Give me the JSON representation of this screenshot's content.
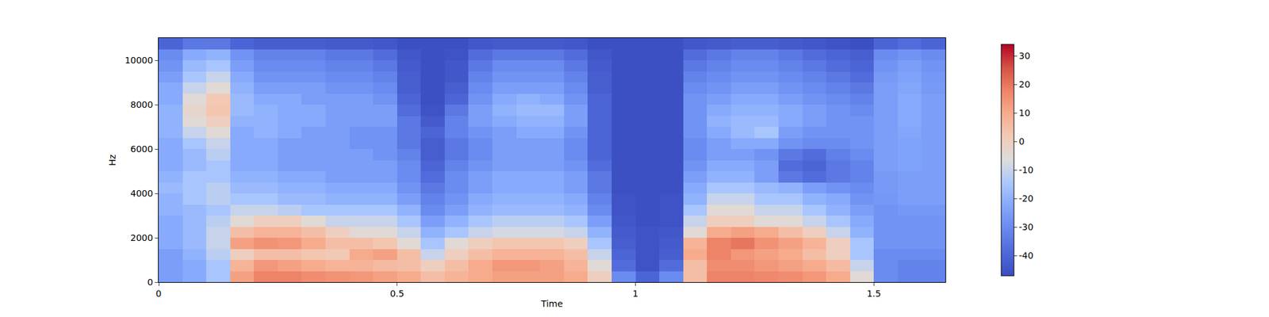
{
  "chart_data": {
    "type": "heatmap",
    "x_label": "Time",
    "y_label": "Hz",
    "xlim": [
      0,
      1.65
    ],
    "xticks": [
      0,
      0.5,
      1,
      1.5
    ],
    "ylim": [
      0,
      11000
    ],
    "yticks": [
      0,
      2000,
      4000,
      6000,
      8000,
      10000
    ],
    "colorbar_range": [
      -47,
      34
    ],
    "colorbar_ticks": [
      -40,
      -30,
      -20,
      -10,
      0,
      10,
      20,
      30
    ],
    "x": [
      0.025,
      0.075,
      0.125,
      0.175,
      0.225,
      0.275,
      0.325,
      0.375,
      0.425,
      0.475,
      0.525,
      0.575,
      0.625,
      0.675,
      0.725,
      0.775,
      0.825,
      0.875,
      0.925,
      0.975,
      1.025,
      1.075,
      1.125,
      1.175,
      1.225,
      1.275,
      1.325,
      1.375,
      1.425,
      1.475,
      1.525,
      1.575,
      1.625
    ],
    "y": [
      250,
      750,
      1250,
      1750,
      2250,
      2750,
      3250,
      3750,
      4250,
      4750,
      5250,
      5750,
      6250,
      6750,
      7250,
      7750,
      8250,
      8750,
      9250,
      9750,
      10250,
      10750
    ],
    "z": [
      [
        -25,
        -22,
        -15,
        12,
        18,
        18,
        16,
        15,
        14,
        12,
        10,
        5,
        8,
        10,
        12,
        12,
        12,
        10,
        0,
        -30,
        -40,
        -30,
        5,
        18,
        18,
        17,
        16,
        14,
        10,
        -5,
        -30,
        -32,
        -32
      ],
      [
        -25,
        -22,
        -15,
        8,
        14,
        12,
        10,
        8,
        8,
        6,
        5,
        0,
        5,
        10,
        14,
        14,
        12,
        8,
        -5,
        -38,
        -45,
        -38,
        5,
        16,
        16,
        14,
        12,
        10,
        6,
        -10,
        -30,
        -32,
        -32
      ],
      [
        -25,
        -20,
        -12,
        0,
        5,
        5,
        3,
        2,
        10,
        12,
        5,
        -10,
        0,
        5,
        8,
        8,
        8,
        5,
        -10,
        -40,
        -45,
        -42,
        10,
        18,
        14,
        12,
        10,
        5,
        0,
        -15,
        -30,
        -30,
        -30
      ],
      [
        -22,
        -18,
        -10,
        12,
        15,
        14,
        10,
        5,
        5,
        3,
        -5,
        -15,
        -5,
        0,
        3,
        3,
        3,
        0,
        -15,
        -42,
        -45,
        -43,
        8,
        18,
        20,
        15,
        12,
        8,
        0,
        -15,
        -28,
        -28,
        -28
      ],
      [
        -22,
        -18,
        -10,
        5,
        8,
        8,
        5,
        0,
        -5,
        -5,
        -10,
        -20,
        -15,
        -10,
        -8,
        -8,
        -8,
        -10,
        -20,
        -43,
        -45,
        -44,
        -5,
        10,
        12,
        10,
        5,
        0,
        -10,
        -20,
        -28,
        -28,
        -28
      ],
      [
        -22,
        -18,
        -12,
        -5,
        0,
        0,
        -5,
        -10,
        -10,
        -10,
        -15,
        -25,
        -20,
        -15,
        -12,
        -12,
        -12,
        -15,
        -25,
        -44,
        -46,
        -45,
        -10,
        0,
        0,
        -5,
        -5,
        -10,
        -15,
        -22,
        -28,
        -28,
        -28
      ],
      [
        -20,
        -18,
        -15,
        -10,
        -10,
        -12,
        -15,
        -15,
        -15,
        -15,
        -20,
        -30,
        -25,
        -20,
        -18,
        -18,
        -18,
        -20,
        -30,
        -45,
        -46,
        -45,
        -15,
        -5,
        -5,
        -10,
        -10,
        -15,
        -20,
        -25,
        -28,
        -27,
        -27
      ],
      [
        -20,
        -15,
        -12,
        -15,
        -15,
        -18,
        -18,
        -20,
        -20,
        -20,
        -25,
        -32,
        -28,
        -22,
        -20,
        -20,
        -20,
        -22,
        -32,
        -45,
        -46,
        -45,
        -20,
        -10,
        -10,
        -15,
        -15,
        -20,
        -22,
        -28,
        -27,
        -25,
        -25
      ],
      [
        -18,
        -15,
        -12,
        -18,
        -18,
        -20,
        -20,
        -22,
        -22,
        -22,
        -28,
        -35,
        -30,
        -25,
        -22,
        -22,
        -22,
        -25,
        -35,
        -46,
        -46,
        -46,
        -22,
        -15,
        -15,
        -18,
        -20,
        -25,
        -28,
        -30,
        -26,
        -25,
        -25
      ],
      [
        -20,
        -15,
        -15,
        -20,
        -20,
        -22,
        -22,
        -25,
        -25,
        -25,
        -30,
        -38,
        -30,
        -25,
        -22,
        -22,
        -22,
        -25,
        -35,
        -46,
        -46,
        -46,
        -25,
        -20,
        -20,
        -25,
        -35,
        -38,
        -35,
        -32,
        -26,
        -25,
        -25
      ],
      [
        -22,
        -18,
        -15,
        -22,
        -22,
        -25,
        -25,
        -25,
        -25,
        -25,
        -30,
        -40,
        -32,
        -28,
        -25,
        -25,
        -25,
        -28,
        -38,
        -46,
        -46,
        -46,
        -28,
        -22,
        -22,
        -25,
        -38,
        -40,
        -35,
        -32,
        -25,
        -24,
        -25
      ],
      [
        -22,
        -18,
        -12,
        -22,
        -22,
        -25,
        -25,
        -25,
        -25,
        -28,
        -32,
        -42,
        -35,
        -30,
        -25,
        -25,
        -25,
        -30,
        -40,
        -46,
        -46,
        -46,
        -30,
        -25,
        -25,
        -28,
        -35,
        -38,
        -33,
        -30,
        -25,
        -24,
        -25
      ],
      [
        -22,
        -15,
        -10,
        -22,
        -22,
        -25,
        -25,
        -25,
        -28,
        -28,
        -35,
        -42,
        -35,
        -30,
        -25,
        -25,
        -25,
        -30,
        -40,
        -46,
        -46,
        -46,
        -30,
        -25,
        -22,
        -22,
        -28,
        -30,
        -30,
        -28,
        -25,
        -24,
        -25
      ],
      [
        -20,
        -10,
        -5,
        -22,
        -20,
        -22,
        -25,
        -25,
        -28,
        -28,
        -35,
        -40,
        -32,
        -28,
        -25,
        -22,
        -22,
        -28,
        -40,
        -46,
        -46,
        -46,
        -28,
        -22,
        -18,
        -15,
        -25,
        -28,
        -28,
        -28,
        -25,
        -23,
        -25
      ],
      [
        -20,
        -5,
        0,
        -20,
        -20,
        -22,
        -22,
        -25,
        -25,
        -25,
        -35,
        -43,
        -32,
        -25,
        -22,
        -20,
        -20,
        -25,
        -40,
        -46,
        -46,
        -46,
        -28,
        -20,
        -18,
        -18,
        -22,
        -25,
        -28,
        -28,
        -25,
        -22,
        -25
      ],
      [
        -20,
        -3,
        3,
        -18,
        -20,
        -22,
        -22,
        -25,
        -25,
        -25,
        -38,
        -45,
        -35,
        -25,
        -20,
        -18,
        -18,
        -25,
        -40,
        -46,
        -46,
        -46,
        -28,
        -22,
        -20,
        -20,
        -22,
        -25,
        -28,
        -30,
        -25,
        -22,
        -25
      ],
      [
        -22,
        -5,
        2,
        -18,
        -22,
        -22,
        -25,
        -25,
        -25,
        -28,
        -40,
        -46,
        -40,
        -28,
        -22,
        -20,
        -22,
        -28,
        -40,
        -46,
        -46,
        -46,
        -28,
        -25,
        -22,
        -22,
        -25,
        -28,
        -30,
        -32,
        -25,
        -22,
        -25
      ],
      [
        -22,
        -10,
        -5,
        -20,
        -25,
        -25,
        -25,
        -28,
        -28,
        -30,
        -42,
        -46,
        -42,
        -30,
        -25,
        -25,
        -25,
        -30,
        -42,
        -46,
        -46,
        -46,
        -30,
        -28,
        -25,
        -25,
        -28,
        -30,
        -32,
        -35,
        -25,
        -23,
        -26
      ],
      [
        -25,
        -15,
        -10,
        -22,
        -28,
        -28,
        -28,
        -30,
        -30,
        -32,
        -42,
        -46,
        -44,
        -32,
        -28,
        -28,
        -28,
        -32,
        -42,
        -46,
        -46,
        -46,
        -32,
        -30,
        -28,
        -28,
        -30,
        -32,
        -35,
        -38,
        -26,
        -24,
        -27
      ],
      [
        -28,
        -18,
        -15,
        -25,
        -30,
        -30,
        -30,
        -32,
        -32,
        -35,
        -43,
        -46,
        -44,
        -35,
        -30,
        -30,
        -30,
        -35,
        -43,
        -46,
        -46,
        -46,
        -35,
        -32,
        -30,
        -30,
        -32,
        -35,
        -38,
        -40,
        -28,
        -25,
        -28
      ],
      [
        -30,
        -22,
        -20,
        -28,
        -32,
        -32,
        -32,
        -35,
        -35,
        -38,
        -44,
        -46,
        -45,
        -38,
        -35,
        -35,
        -35,
        -38,
        -44,
        -46,
        -46,
        -46,
        -38,
        -35,
        -32,
        -32,
        -35,
        -38,
        -40,
        -42,
        -30,
        -28,
        -30
      ],
      [
        -40,
        -35,
        -35,
        -40,
        -42,
        -42,
        -42,
        -43,
        -43,
        -44,
        -46,
        -46,
        -46,
        -44,
        -43,
        -43,
        -43,
        -44,
        -46,
        -46,
        -46,
        -46,
        -44,
        -43,
        -42,
        -42,
        -43,
        -44,
        -45,
        -46,
        -40,
        -38,
        -40
      ]
    ]
  }
}
